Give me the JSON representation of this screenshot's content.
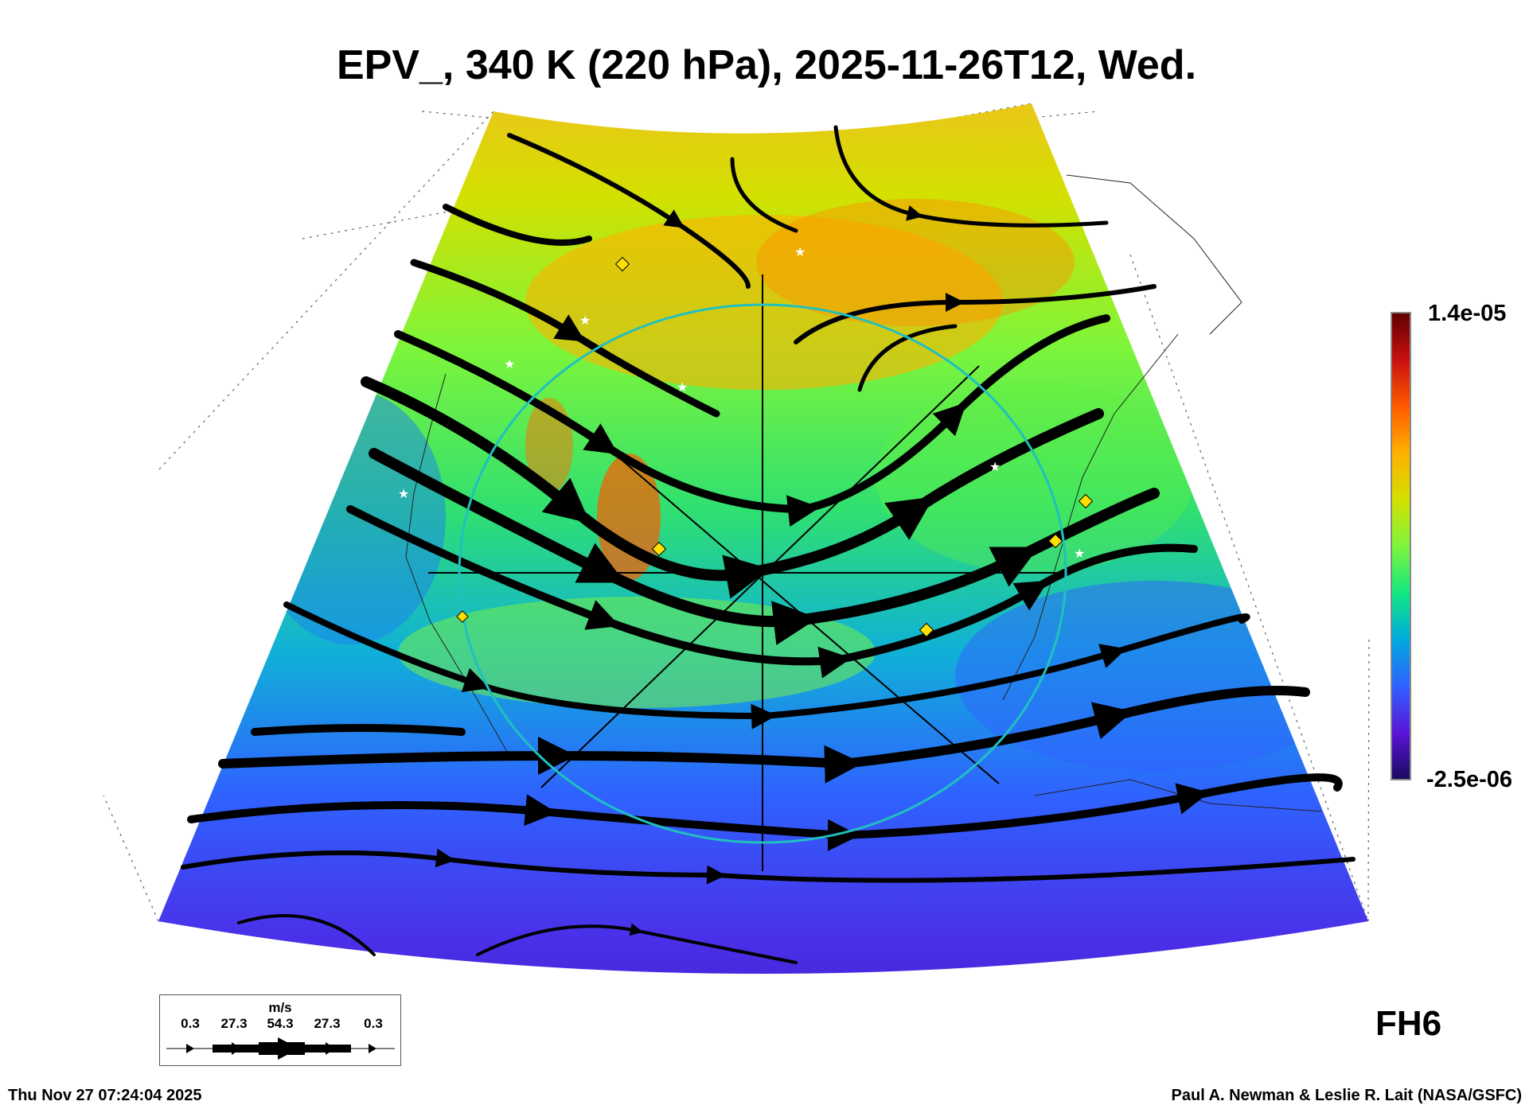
{
  "title": "EPV_, 340 K (220 hPa), 2025-11-26T12, Wed.",
  "colorbar": {
    "max_label": "1.4e-05",
    "min_label": "-2.5e-06",
    "colors": [
      "#1a0a5e",
      "#5a14d8",
      "#2f62ff",
      "#00aae0",
      "#12e880",
      "#7ef53a",
      "#d4e000",
      "#ffb000",
      "#ff5a00",
      "#c81010",
      "#600000"
    ]
  },
  "legend": {
    "unit": "m/s",
    "speeds": [
      "0.3",
      "27.3",
      "54.3",
      "27.3",
      "0.3"
    ]
  },
  "forecast_hour": "FH6",
  "footer": {
    "timestamp": "Thu Nov 27 07:24:04 2025",
    "credit": "Paul A. Newman & Leslie R. Lait (NASA/GSFC)"
  }
}
